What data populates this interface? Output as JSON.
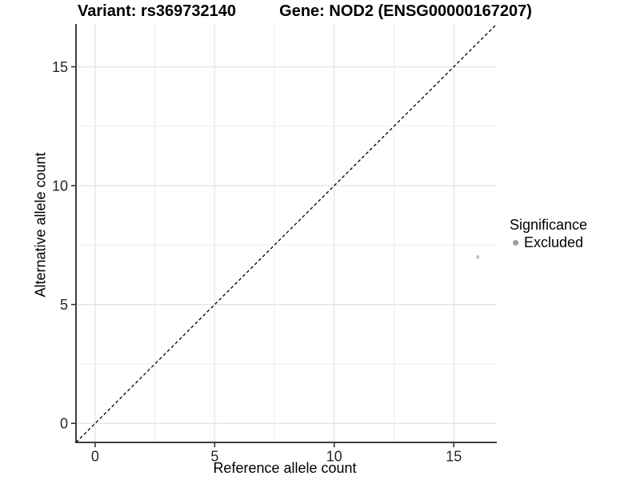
{
  "chart_data": {
    "type": "scatter",
    "title_left": "Variant: rs369732140",
    "title_right": "Gene: NOD2 (ENSG00000167207)",
    "xlabel": "Reference allele count",
    "ylabel": "Alternative allele count",
    "xlim": [
      -0.8,
      16.8
    ],
    "ylim": [
      -0.8,
      16.8
    ],
    "x_major_ticks": [
      0,
      5,
      10,
      15
    ],
    "x_minor_ticks": [
      2.5,
      7.5,
      12.5
    ],
    "y_major_ticks": [
      0,
      5,
      10,
      15
    ],
    "y_minor_ticks": [
      2.5,
      7.5,
      12.5
    ],
    "grid": "major+minor",
    "legend_position": "right",
    "series": [
      {
        "name": "Excluded",
        "color": "#c4c4c4",
        "points": [
          {
            "x": 16,
            "y": 7
          }
        ]
      }
    ],
    "reference_line": {
      "equation": "y = x",
      "style": "dashed",
      "color": "#000000",
      "span": [
        -0.8,
        16.8
      ]
    }
  },
  "legend": {
    "title": "Significance",
    "items": [
      {
        "label": "Excluded",
        "marker": "circle",
        "color": "#9c9c9c"
      }
    ]
  },
  "colors": {
    "background": "#ffffff",
    "grid_major": "#e2e2e2",
    "grid_minor": "#eeeeee",
    "axis_line": "#404040",
    "tick_mark": "#333333",
    "tick_label": "#262626",
    "title_text": "#000000"
  }
}
